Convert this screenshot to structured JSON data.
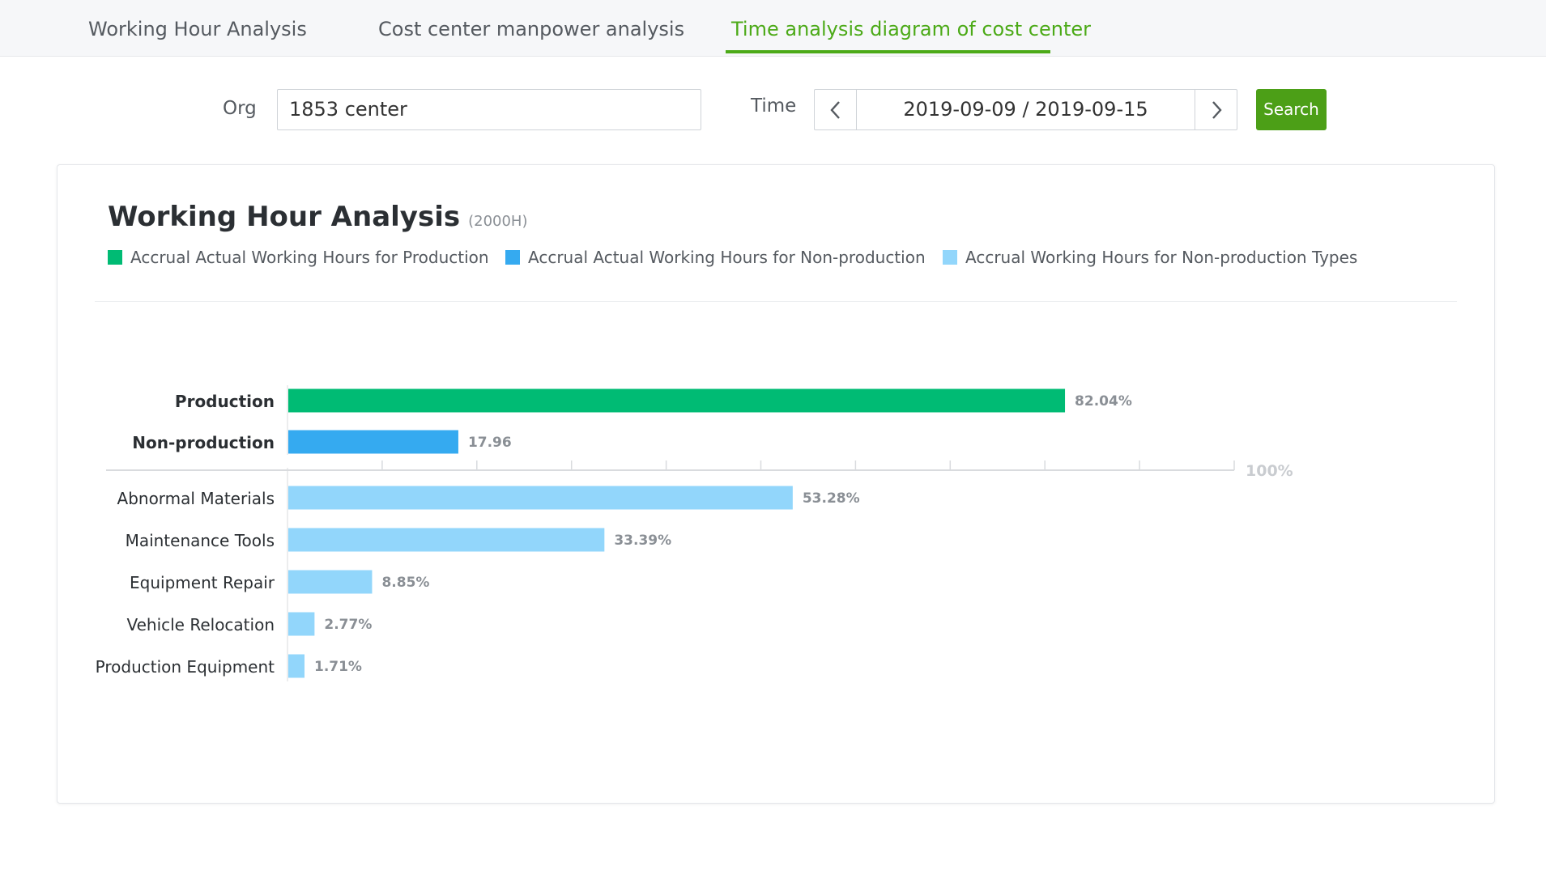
{
  "tabs": [
    {
      "label": "Working Hour Analysis",
      "active": false
    },
    {
      "label": "Cost center manpower analysis",
      "active": false
    },
    {
      "label": "Time analysis diagram of cost center",
      "active": true
    }
  ],
  "filters": {
    "org_label": "Org",
    "org_value": "1853 center",
    "time_label": "Time",
    "date_range": "2019-09-09 / 2019-09-15",
    "search_label": "Search"
  },
  "card": {
    "title": "Working Hour Analysis",
    "unit": "(2000H)",
    "legend": [
      {
        "label": "Accrual Actual Working Hours for Production",
        "color": "#00bb74"
      },
      {
        "label": "Accrual Actual Working Hours for Non-production",
        "color": "#35aaf0"
      },
      {
        "label": "Accrual Working Hours for Non-production Types",
        "color": "#92d6fb"
      }
    ]
  },
  "chart_data": {
    "type": "bar",
    "orientation": "horizontal",
    "axis_max_label": "100%",
    "xlim": [
      0,
      100
    ],
    "groups": [
      {
        "rows": [
          {
            "category": "Production",
            "value": 82.04,
            "label": "82.04%",
            "color": "#00bb74",
            "bold": true
          },
          {
            "category": "Non-production",
            "value": 17.96,
            "label": "17.96",
            "color": "#35aaf0",
            "bold": true
          }
        ]
      },
      {
        "rows": [
          {
            "category": "Abnormal Materials",
            "value": 53.28,
            "label": "53.28%",
            "color": "#92d6fb",
            "bold": false
          },
          {
            "category": "Maintenance Tools",
            "value": 33.39,
            "label": "33.39%",
            "color": "#92d6fb",
            "bold": false
          },
          {
            "category": "Equipment Repair",
            "value": 8.85,
            "label": "8.85%",
            "color": "#92d6fb",
            "bold": false
          },
          {
            "category": "Vehicle Relocation",
            "value": 2.77,
            "label": "2.77%",
            "color": "#92d6fb",
            "bold": false
          },
          {
            "category": "Production Equipment",
            "value": 1.71,
            "label": "1.71%",
            "color": "#92d6fb",
            "bold": false
          }
        ]
      }
    ]
  }
}
